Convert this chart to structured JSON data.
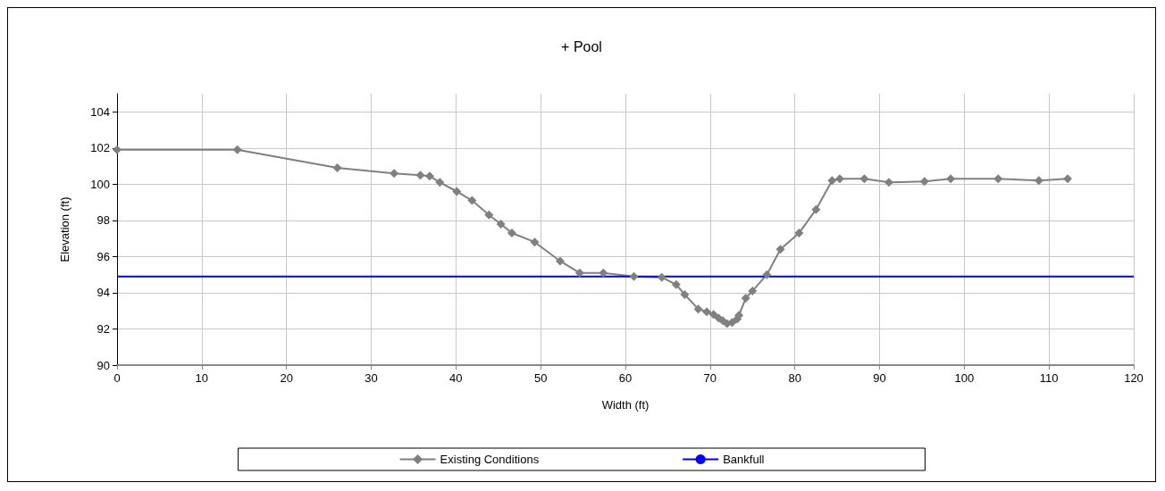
{
  "chart_data": {
    "type": "line",
    "title": "+ Pool",
    "xlabel": "Width (ft)",
    "ylabel": "Elevation (ft)",
    "xlim": [
      0,
      120
    ],
    "xticks": [
      0,
      10,
      20,
      30,
      40,
      50,
      60,
      70,
      80,
      90,
      100,
      110,
      120
    ],
    "ylim": [
      90,
      105
    ],
    "yticks": [
      90,
      92,
      94,
      96,
      98,
      100,
      102,
      104
    ],
    "grid": true,
    "legend": "bottom",
    "series": [
      {
        "name": "Existing Conditions",
        "color": "#808080",
        "marker": "diamond",
        "x": [
          0,
          14.2,
          26,
          32.7,
          35.8,
          36.9,
          38.1,
          40.1,
          41.9,
          43.9,
          45.3,
          46.6,
          49.3,
          52.3,
          54.6,
          57.4,
          61,
          64.3,
          66,
          67,
          68.6,
          69.6,
          70.4,
          71,
          71.5,
          72,
          72.6,
          73.2,
          73.4,
          74.2,
          75,
          76.7,
          78.3,
          80.5,
          82.5,
          84.4,
          85.3,
          88.2,
          91.1,
          95.3,
          98.4,
          104,
          108.8,
          112.2
        ],
        "values": [
          101.9,
          101.9,
          100.9,
          100.6,
          100.5,
          100.45,
          100.1,
          99.6,
          99.1,
          98.3,
          97.8,
          97.3,
          96.8,
          95.75,
          95.1,
          95.1,
          94.9,
          94.85,
          94.45,
          93.9,
          93.1,
          92.95,
          92.8,
          92.6,
          92.45,
          92.3,
          92.35,
          92.55,
          92.75,
          93.7,
          94.1,
          95,
          96.4,
          97.3,
          98.6,
          100.2,
          100.3,
          100.3,
          100.1,
          100.15,
          100.3,
          100.3,
          100.2,
          100.3
        ]
      },
      {
        "name": "Bankfull",
        "color": "#0000ff",
        "marker": "none",
        "x": [
          0,
          120
        ],
        "values": [
          94.9,
          94.9
        ]
      }
    ]
  }
}
